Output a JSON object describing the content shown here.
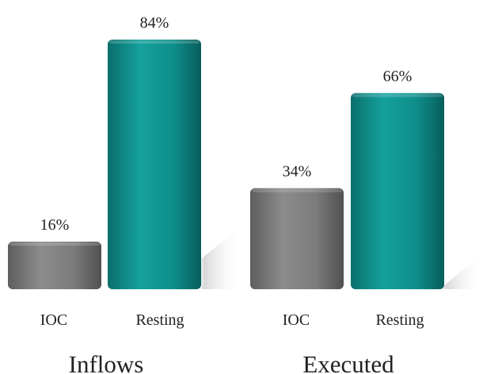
{
  "chart_data": [
    {
      "type": "bar",
      "title": "Inflows",
      "categories": [
        "IOC",
        "Resting"
      ],
      "values": [
        16,
        84
      ],
      "value_labels": [
        "16%",
        "84%"
      ],
      "ylim": [
        0,
        100
      ],
      "grid": false,
      "colors": [
        "#7a7a7a",
        "#0f8f8c"
      ]
    },
    {
      "type": "bar",
      "title": "Executed",
      "categories": [
        "IOC",
        "Resting"
      ],
      "values": [
        34,
        66
      ],
      "value_labels": [
        "34%",
        "66%"
      ],
      "ylim": [
        0,
        100
      ],
      "grid": false,
      "colors": [
        "#7a7a7a",
        "#0f8f8c"
      ]
    }
  ]
}
